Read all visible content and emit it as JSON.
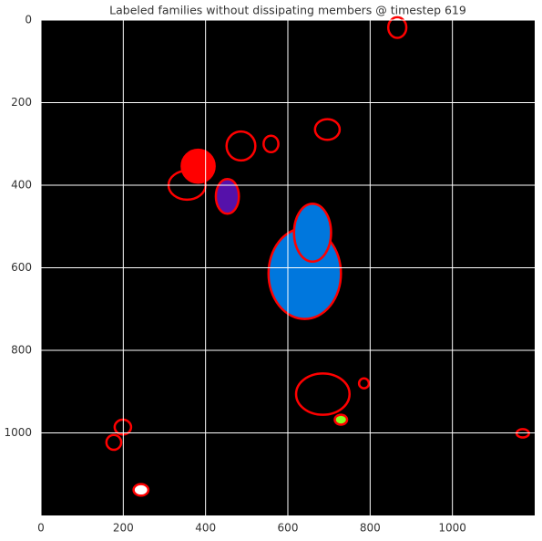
{
  "chart_data": {
    "type": "image",
    "title": "Labeled families without dissipating members @ timestep 619",
    "xlim": [
      0,
      1200
    ],
    "ylim": [
      1200,
      0
    ],
    "xticks": [
      0,
      200,
      400,
      600,
      800,
      1000
    ],
    "yticks": [
      0,
      200,
      400,
      600,
      800,
      1000
    ],
    "grid": true,
    "background": "#000000",
    "grid_color": "#ffffff",
    "regions": [
      {
        "x": 641,
        "y": 614,
        "rx": 88,
        "ry": 110,
        "fill": "#0077dd",
        "stroke": "#ff0000"
      },
      {
        "x": 660,
        "y": 515,
        "rx": 45,
        "ry": 70,
        "fill": "#0077dd",
        "stroke": "#ff0000"
      },
      {
        "x": 453,
        "y": 427,
        "rx": 28,
        "ry": 42,
        "fill": "#5511aa",
        "stroke": "#ff0000"
      },
      {
        "x": 382,
        "y": 354,
        "rx": 40,
        "ry": 40,
        "fill": "#ff0000",
        "stroke": "#ff0000"
      },
      {
        "x": 486,
        "y": 305,
        "rx": 35,
        "ry": 35,
        "fill": "none",
        "stroke": "#ff0000"
      },
      {
        "x": 559,
        "y": 300,
        "rx": 18,
        "ry": 20,
        "fill": "none",
        "stroke": "#ff0000"
      },
      {
        "x": 696,
        "y": 265,
        "rx": 30,
        "ry": 25,
        "fill": "none",
        "stroke": "#ff0000"
      },
      {
        "x": 685,
        "y": 906,
        "rx": 65,
        "ry": 50,
        "fill": "none",
        "stroke": "#ff0000"
      },
      {
        "x": 729,
        "y": 968,
        "rx": 15,
        "ry": 12,
        "fill": "#88ff22",
        "stroke": "#ff0000"
      },
      {
        "x": 199,
        "y": 986,
        "rx": 20,
        "ry": 18,
        "fill": "none",
        "stroke": "#ff0000"
      },
      {
        "x": 177,
        "y": 1023,
        "rx": 18,
        "ry": 18,
        "fill": "none",
        "stroke": "#ff0000"
      },
      {
        "x": 866,
        "y": 18,
        "rx": 22,
        "ry": 25,
        "fill": "none",
        "stroke": "#ff0000"
      },
      {
        "x": 243,
        "y": 1138,
        "rx": 18,
        "ry": 14,
        "fill": "#ffffff",
        "stroke": "#ff0000"
      },
      {
        "x": 1171,
        "y": 1001,
        "rx": 15,
        "ry": 10,
        "fill": "none",
        "stroke": "#ff0000"
      },
      {
        "x": 785,
        "y": 880,
        "rx": 12,
        "ry": 12,
        "fill": "none",
        "stroke": "#ff0000"
      },
      {
        "x": 355,
        "y": 400,
        "rx": 45,
        "ry": 35,
        "fill": "none",
        "stroke": "#ff0000"
      }
    ]
  }
}
